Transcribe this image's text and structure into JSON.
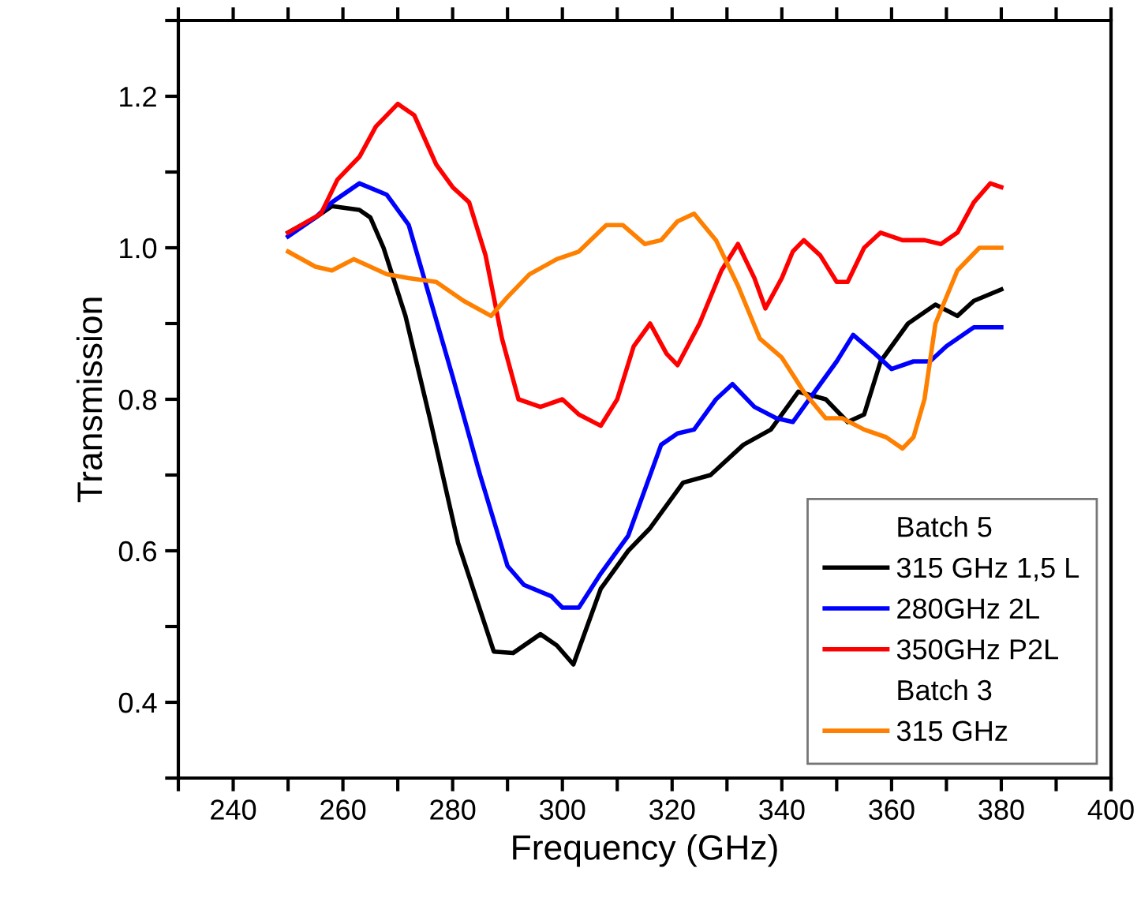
{
  "chart_data": {
    "type": "line",
    "xlabel": "Frequency (GHz)",
    "ylabel": "Transmission",
    "xlim": [
      230,
      400
    ],
    "ylim": [
      0.3,
      1.3
    ],
    "xticks": [
      {
        "value": 230,
        "label": null
      },
      240,
      {
        "value": 250,
        "label": null
      },
      260,
      {
        "value": 270,
        "label": null
      },
      280,
      {
        "value": 290,
        "label": null
      },
      300,
      {
        "value": 310,
        "label": null
      },
      320,
      {
        "value": 330,
        "label": null
      },
      340,
      {
        "value": 350,
        "label": null
      },
      360,
      {
        "value": 370,
        "label": null
      },
      380,
      {
        "value": 390,
        "label": null
      },
      400
    ],
    "yticks": [
      {
        "value": 0.3,
        "label": null
      },
      0.4,
      {
        "value": 0.5,
        "label": null
      },
      0.6,
      {
        "value": 0.7,
        "label": null
      },
      0.8,
      {
        "value": 0.9,
        "label": null
      },
      {
        "value": 1.0,
        "label": "1.0"
      },
      {
        "value": 1.1,
        "label": null
      },
      1.2,
      {
        "value": 1.3,
        "label": null
      }
    ],
    "annotations": [
      "Batch 5",
      "Batch 3"
    ],
    "grid": false,
    "legend": "bottom right",
    "marker": "none",
    "line_style": "solid",
    "series": [
      {
        "name": "315 GHz 1,5 L",
        "color": "#000000",
        "x": [
          250,
          255,
          258,
          263,
          265,
          267.4,
          271.4,
          276,
          281,
          287.5,
          291,
          296,
          299,
          302,
          307,
          312,
          316,
          322,
          327,
          333,
          338,
          343,
          348,
          352,
          355,
          358,
          363,
          368,
          372,
          375,
          380
        ],
        "values": [
          1.02,
          1.04,
          1.055,
          1.05,
          1.04,
          1.0,
          0.91,
          0.77,
          0.61,
          0.467,
          0.465,
          0.49,
          0.475,
          0.45,
          0.55,
          0.6,
          0.63,
          0.69,
          0.7,
          0.74,
          0.76,
          0.81,
          0.8,
          0.77,
          0.78,
          0.85,
          0.9,
          0.925,
          0.91,
          0.93,
          0.945
        ]
      },
      {
        "name": "280GHz 2L",
        "color": "#0000ff",
        "x": [
          250,
          255,
          258,
          263,
          268,
          272,
          276,
          280,
          285,
          290,
          293,
          298,
          300,
          303,
          307,
          312,
          318,
          321,
          324,
          328,
          331,
          335,
          339,
          342,
          345,
          350,
          353,
          357,
          360,
          364,
          367,
          370,
          375,
          380
        ],
        "values": [
          1.015,
          1.04,
          1.06,
          1.085,
          1.07,
          1.03,
          0.93,
          0.83,
          0.7,
          0.58,
          0.555,
          0.54,
          0.525,
          0.525,
          0.57,
          0.62,
          0.74,
          0.755,
          0.76,
          0.8,
          0.82,
          0.79,
          0.775,
          0.77,
          0.8,
          0.85,
          0.885,
          0.86,
          0.84,
          0.85,
          0.85,
          0.87,
          0.895,
          0.895
        ]
      },
      {
        "name": "350GHz P2L",
        "color": "#ff0000",
        "x": [
          250,
          256,
          259,
          263,
          266,
          270,
          273,
          277,
          280,
          283,
          286,
          289,
          292,
          296,
          300,
          303,
          307,
          310,
          313,
          316,
          319,
          321,
          325,
          329,
          332,
          335,
          337,
          340,
          342,
          344,
          347,
          350,
          352,
          355,
          358,
          362,
          366,
          369,
          372,
          375,
          378,
          380
        ],
        "values": [
          1.02,
          1.045,
          1.09,
          1.12,
          1.16,
          1.19,
          1.175,
          1.11,
          1.08,
          1.06,
          0.99,
          0.88,
          0.8,
          0.79,
          0.8,
          0.78,
          0.765,
          0.8,
          0.87,
          0.9,
          0.86,
          0.845,
          0.9,
          0.97,
          1.005,
          0.96,
          0.92,
          0.96,
          0.995,
          1.01,
          0.99,
          0.955,
          0.955,
          1.0,
          1.02,
          1.01,
          1.01,
          1.005,
          1.02,
          1.06,
          1.085,
          1.08
        ]
      },
      {
        "name": "315 GHz",
        "color": "#ff8000",
        "x": [
          250,
          255,
          258,
          262,
          265,
          268,
          272,
          277,
          282,
          287,
          290,
          294,
          299,
          303,
          308,
          311,
          315,
          318,
          321,
          324,
          328,
          332,
          336,
          340,
          344,
          348,
          351,
          355,
          359,
          362,
          364,
          366,
          368,
          372,
          376,
          380
        ],
        "values": [
          0.995,
          0.975,
          0.97,
          0.985,
          0.975,
          0.965,
          0.96,
          0.955,
          0.93,
          0.91,
          0.935,
          0.965,
          0.985,
          0.995,
          1.03,
          1.03,
          1.005,
          1.01,
          1.035,
          1.045,
          1.01,
          0.95,
          0.88,
          0.855,
          0.81,
          0.775,
          0.775,
          0.76,
          0.75,
          0.735,
          0.75,
          0.8,
          0.9,
          0.97,
          1.0,
          1.0
        ]
      }
    ]
  }
}
